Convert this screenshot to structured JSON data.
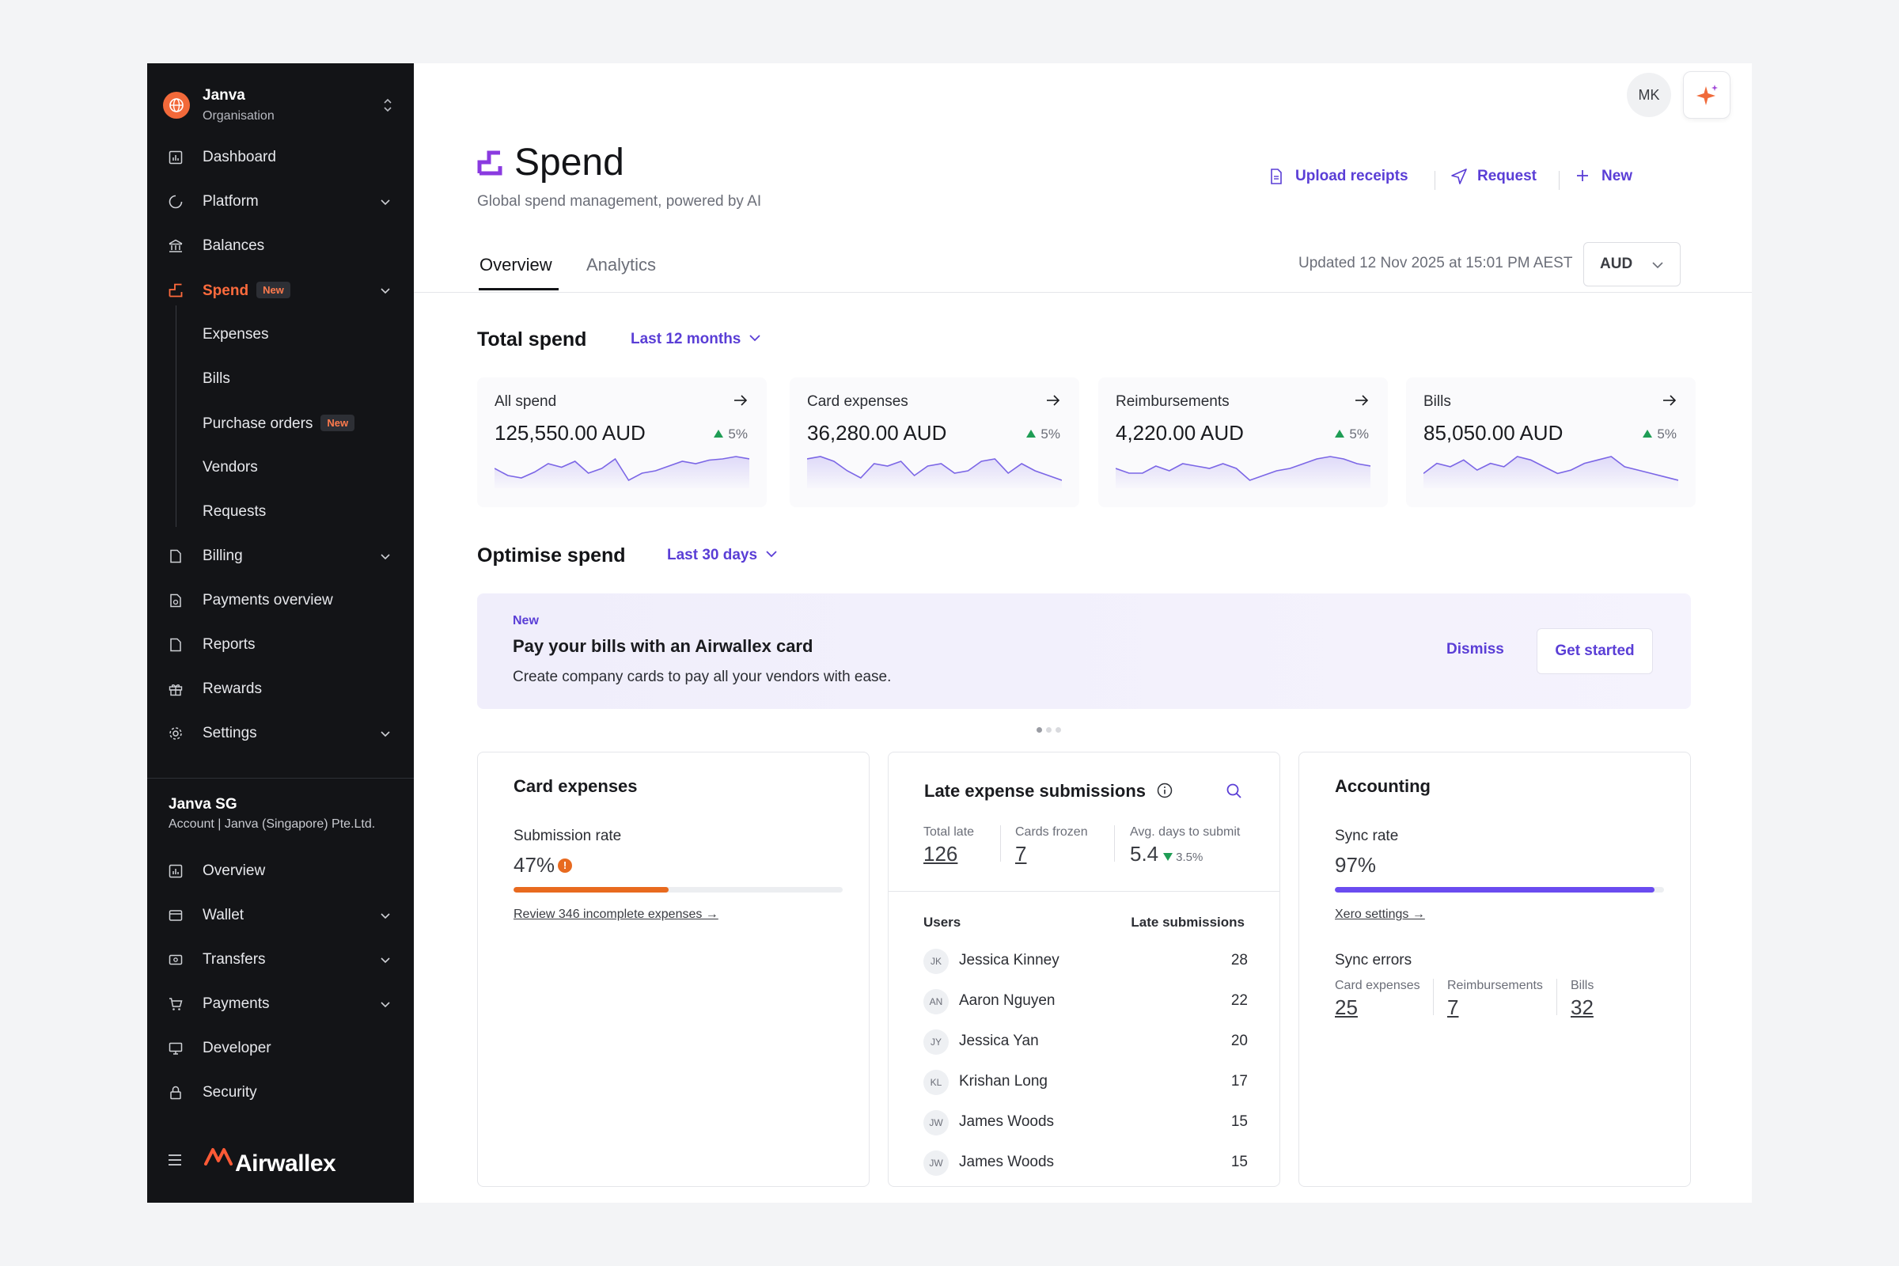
{
  "org": {
    "name": "Janva",
    "sub": "Organisation"
  },
  "sidebar": {
    "items": [
      {
        "label": "Dashboard"
      },
      {
        "label": "Platform"
      },
      {
        "label": "Balances"
      },
      {
        "label": "Spend",
        "badge": "New"
      },
      {
        "label": "Expenses"
      },
      {
        "label": "Bills"
      },
      {
        "label": "Purchase orders",
        "badge": "New"
      },
      {
        "label": "Vendors"
      },
      {
        "label": "Requests"
      },
      {
        "label": "Billing"
      },
      {
        "label": "Payments overview"
      },
      {
        "label": "Reports"
      },
      {
        "label": "Rewards"
      },
      {
        "label": "Settings"
      }
    ],
    "account": {
      "name": "Janva SG",
      "sub": "Account | Janva (Singapore) Pte.Ltd."
    },
    "account_items": [
      {
        "label": "Overview"
      },
      {
        "label": "Wallet"
      },
      {
        "label": "Transfers"
      },
      {
        "label": "Payments"
      },
      {
        "label": "Developer"
      },
      {
        "label": "Security"
      }
    ],
    "brand": "Airwallex"
  },
  "header": {
    "avatar": "MK"
  },
  "page": {
    "title": "Spend",
    "subtitle": "Global spend management, powered by AI",
    "actions": {
      "upload": "Upload receipts",
      "request": "Request",
      "new": "New"
    },
    "tabs": [
      "Overview",
      "Analytics"
    ],
    "updated": "Updated 12 Nov 2025 at 15:01 PM AEST",
    "currency": "AUD"
  },
  "total_spend": {
    "title": "Total spend",
    "period": "Last 12 months",
    "cards": [
      {
        "label": "All spend",
        "value": "125,550.00 AUD",
        "delta": "5%",
        "trend": [
          18,
          12,
          10,
          15,
          22,
          19,
          24,
          14,
          18,
          26,
          8,
          14,
          16,
          20,
          24,
          22,
          25,
          26,
          28,
          26
        ]
      },
      {
        "label": "Card expenses",
        "value": "36,280.00 AUD",
        "delta": "5%",
        "trend": [
          24,
          26,
          22,
          14,
          8,
          20,
          18,
          22,
          10,
          18,
          20,
          12,
          14,
          22,
          24,
          12,
          20,
          14,
          10,
          6
        ]
      },
      {
        "label": "Reimbursements",
        "value": "4,220.00 AUD",
        "delta": "5%",
        "trend": [
          16,
          12,
          12,
          18,
          14,
          20,
          18,
          16,
          20,
          16,
          6,
          10,
          14,
          16,
          20,
          24,
          26,
          24,
          20,
          18
        ]
      },
      {
        "label": "Bills",
        "value": "85,050.00 AUD",
        "delta": "5%",
        "trend": [
          12,
          18,
          16,
          20,
          14,
          18,
          16,
          22,
          20,
          16,
          12,
          14,
          18,
          20,
          22,
          16,
          14,
          12,
          10,
          8
        ]
      }
    ]
  },
  "optimise": {
    "title": "Optimise spend",
    "period": "Last 30 days",
    "banner": {
      "tag": "New",
      "title": "Pay your bills with an Airwallex card",
      "desc": "Create company cards to pay all your vendors with ease.",
      "dismiss": "Dismiss",
      "cta": "Get started"
    }
  },
  "card_expenses": {
    "title": "Card expenses",
    "rate_label": "Submission rate",
    "rate": "47%",
    "rate_value": 0.47,
    "link": "Review 346 incomplete expenses →"
  },
  "late": {
    "title": "Late expense submissions",
    "stats": [
      {
        "label": "Total late",
        "value": "126"
      },
      {
        "label": "Cards frozen",
        "value": "7"
      },
      {
        "label": "Avg. days to submit",
        "value": "5.4",
        "delta": "3.5%"
      }
    ],
    "col_users": "Users",
    "col_late": "Late submissions",
    "rows": [
      {
        "initials": "JK",
        "name": "Jessica Kinney",
        "count": "28"
      },
      {
        "initials": "AN",
        "name": "Aaron Nguyen",
        "count": "22"
      },
      {
        "initials": "JY",
        "name": "Jessica Yan",
        "count": "20"
      },
      {
        "initials": "KL",
        "name": "Krishan Long",
        "count": "17"
      },
      {
        "initials": "JW",
        "name": "James Woods",
        "count": "15"
      },
      {
        "initials": "JW",
        "name": "James Woods",
        "count": "15"
      }
    ]
  },
  "accounting": {
    "title": "Accounting",
    "sync_label": "Sync rate",
    "sync_rate": "97%",
    "sync_value": 0.97,
    "link": "Xero settings →",
    "errors_title": "Sync errors",
    "errors": [
      {
        "label": "Card expenses",
        "value": "25"
      },
      {
        "label": "Reimbursements",
        "value": "7"
      },
      {
        "label": "Bills",
        "value": "32"
      }
    ]
  },
  "colors": {
    "accent": "#5a3ed6",
    "brand": "#f2693a",
    "sidebar_bg": "#131417",
    "success": "#1f9d55",
    "warning": "#e86a1f"
  }
}
